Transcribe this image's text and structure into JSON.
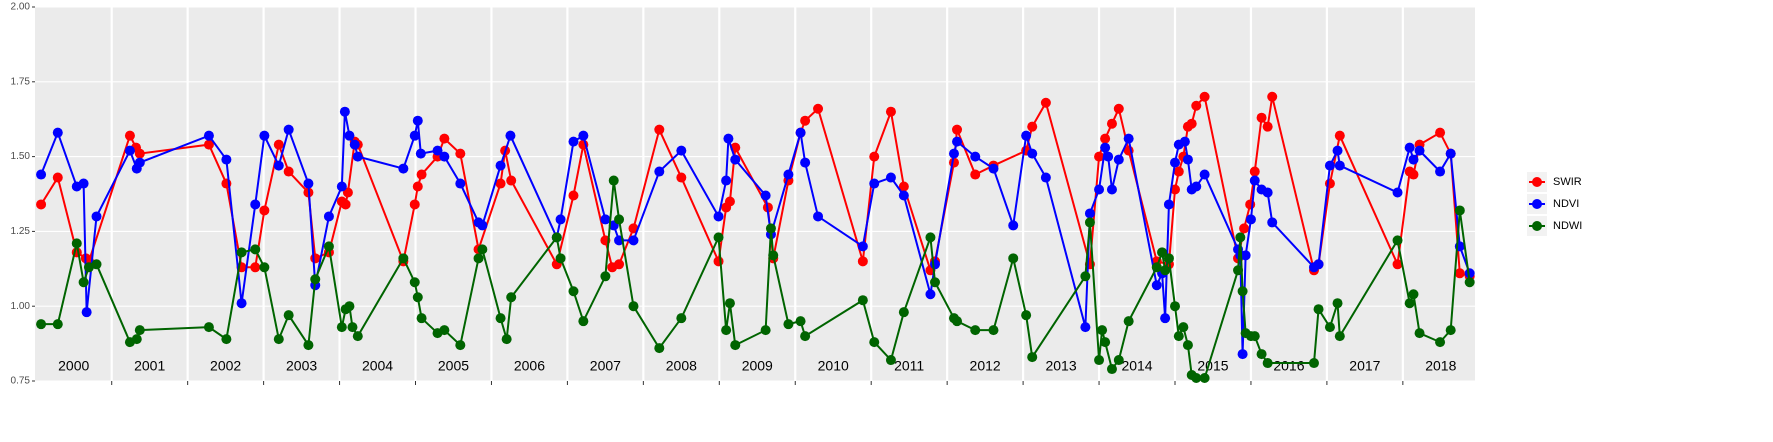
{
  "chart_data": {
    "type": "line",
    "xlim": [
      1999.99,
      2018.95
    ],
    "ylim": [
      0.75,
      2.0
    ],
    "yticks": [
      {
        "value": 0.75,
        "label": "0.75"
      },
      {
        "value": 1.0,
        "label": "1.00"
      },
      {
        "value": 1.25,
        "label": "1.25"
      },
      {
        "value": 1.5,
        "label": "1.50"
      },
      {
        "value": 1.75,
        "label": "1.75"
      },
      {
        "value": 2.0,
        "label": "2.00"
      }
    ],
    "xticks": [
      2001,
      2002,
      2003,
      2004,
      2005,
      2006,
      2007,
      2008,
      2009,
      2010,
      2011,
      2012,
      2013,
      2014,
      2015,
      2016,
      2017,
      2018
    ],
    "year_labels": [
      {
        "value": 2000.5,
        "label": "2000"
      },
      {
        "value": 2001.5,
        "label": "2001"
      },
      {
        "value": 2002.5,
        "label": "2002"
      },
      {
        "value": 2003.5,
        "label": "2003"
      },
      {
        "value": 2004.5,
        "label": "2004"
      },
      {
        "value": 2005.5,
        "label": "2005"
      },
      {
        "value": 2006.5,
        "label": "2006"
      },
      {
        "value": 2007.5,
        "label": "2007"
      },
      {
        "value": 2008.5,
        "label": "2008"
      },
      {
        "value": 2009.5,
        "label": "2009"
      },
      {
        "value": 2010.5,
        "label": "2010"
      },
      {
        "value": 2011.5,
        "label": "2011"
      },
      {
        "value": 2012.5,
        "label": "2012"
      },
      {
        "value": 2013.5,
        "label": "2013"
      },
      {
        "value": 2014.5,
        "label": "2014"
      },
      {
        "value": 2015.5,
        "label": "2015"
      },
      {
        "value": 2016.5,
        "label": "2016"
      },
      {
        "value": 2017.5,
        "label": "2017"
      },
      {
        "value": 2018.5,
        "label": "2018"
      }
    ],
    "grid": true,
    "legend": "right",
    "series": [
      {
        "name": "SWIR",
        "color": "#ff0000",
        "x": [
          2000.07,
          2000.29,
          2000.54,
          2000.66,
          2000.7,
          2001.24,
          2001.32,
          2001.37,
          2002.28,
          2002.51,
          2002.71,
          2002.89,
          2003.01,
          2003.2,
          2003.33,
          2003.59,
          2003.68,
          2003.86,
          2004.03,
          2004.08,
          2004.11,
          2004.2,
          2004.24,
          2004.84,
          2004.99,
          2005.03,
          2005.08,
          2005.29,
          2005.38,
          2005.59,
          2005.83,
          2006.12,
          2006.18,
          2006.26,
          2006.86,
          2007.08,
          2007.21,
          2007.5,
          2007.59,
          2007.68,
          2007.87,
          2008.21,
          2008.5,
          2008.99,
          2009.09,
          2009.14,
          2009.21,
          2009.64,
          2009.71,
          2009.91,
          2010.07,
          2010.13,
          2010.3,
          2010.89,
          2011.04,
          2011.26,
          2011.43,
          2011.78,
          2011.84,
          2012.09,
          2012.13,
          2012.37,
          2012.61,
          2013.04,
          2013.12,
          2013.3,
          2013.88,
          2014.0,
          2014.08,
          2014.17,
          2014.26,
          2014.39,
          2014.76,
          2014.92,
          2015.0,
          2015.05,
          2015.11,
          2015.17,
          2015.22,
          2015.28,
          2015.39,
          2015.83,
          2015.91,
          2015.99,
          2016.05,
          2016.14,
          2016.22,
          2016.28,
          2016.83,
          2016.89,
          2017.04,
          2017.17,
          2017.93,
          2018.09,
          2018.14,
          2018.22,
          2018.49,
          2018.63,
          2018.75,
          2018.88
        ],
        "values": [
          1.34,
          1.43,
          1.18,
          1.16,
          1.15,
          1.57,
          1.53,
          1.51,
          1.54,
          1.41,
          1.13,
          1.13,
          1.32,
          1.54,
          1.45,
          1.38,
          1.16,
          1.18,
          1.35,
          1.34,
          1.38,
          1.55,
          1.54,
          1.15,
          1.34,
          1.4,
          1.44,
          1.5,
          1.56,
          1.51,
          1.19,
          1.41,
          1.52,
          1.42,
          1.14,
          1.37,
          1.54,
          1.22,
          1.13,
          1.14,
          1.26,
          1.59,
          1.43,
          1.15,
          1.33,
          1.35,
          1.53,
          1.33,
          1.16,
          1.42,
          1.58,
          1.62,
          1.66,
          1.15,
          1.5,
          1.65,
          1.4,
          1.12,
          1.15,
          1.48,
          1.59,
          1.44,
          1.47,
          1.52,
          1.6,
          1.68,
          1.14,
          1.5,
          1.56,
          1.61,
          1.66,
          1.52,
          1.15,
          1.14,
          1.39,
          1.45,
          1.5,
          1.6,
          1.61,
          1.67,
          1.7,
          1.16,
          1.26,
          1.34,
          1.45,
          1.63,
          1.6,
          1.7,
          1.12,
          1.14,
          1.41,
          1.57,
          1.14,
          1.45,
          1.44,
          1.54,
          1.58,
          1.51,
          1.11,
          1.1
        ]
      },
      {
        "name": "NDVI",
        "color": "#0000ff",
        "x": [
          2000.07,
          2000.29,
          2000.54,
          2000.63,
          2000.67,
          2000.8,
          2001.24,
          2001.33,
          2001.37,
          2002.28,
          2002.51,
          2002.71,
          2002.89,
          2003.01,
          2003.2,
          2003.33,
          2003.59,
          2003.68,
          2003.86,
          2004.03,
          2004.07,
          2004.13,
          2004.2,
          2004.24,
          2004.84,
          2004.99,
          2005.03,
          2005.07,
          2005.29,
          2005.38,
          2005.59,
          2005.83,
          2005.88,
          2006.12,
          2006.25,
          2006.86,
          2006.91,
          2007.08,
          2007.21,
          2007.5,
          2007.61,
          2007.68,
          2007.87,
          2008.21,
          2008.5,
          2008.99,
          2009.09,
          2009.12,
          2009.21,
          2009.61,
          2009.68,
          2009.91,
          2010.07,
          2010.13,
          2010.3,
          2010.89,
          2011.04,
          2011.26,
          2011.43,
          2011.78,
          2011.84,
          2012.09,
          2012.13,
          2012.37,
          2012.61,
          2012.87,
          2013.04,
          2013.12,
          2013.3,
          2013.82,
          2013.88,
          2014.0,
          2014.08,
          2014.12,
          2014.17,
          2014.26,
          2014.39,
          2014.76,
          2014.83,
          2014.87,
          2014.92,
          2015.0,
          2015.05,
          2015.13,
          2015.17,
          2015.22,
          2015.28,
          2015.39,
          2015.83,
          2015.86,
          2015.89,
          2015.93,
          2016.0,
          2016.05,
          2016.14,
          2016.22,
          2016.28,
          2016.83,
          2016.89,
          2017.04,
          2017.14,
          2017.17,
          2017.93,
          2018.09,
          2018.14,
          2018.22,
          2018.49,
          2018.63,
          2018.75,
          2018.88
        ],
        "values": [
          1.44,
          1.58,
          1.4,
          1.41,
          0.98,
          1.3,
          1.52,
          1.46,
          1.48,
          1.57,
          1.49,
          1.01,
          1.34,
          1.57,
          1.47,
          1.59,
          1.41,
          1.07,
          1.3,
          1.4,
          1.65,
          1.57,
          1.54,
          1.5,
          1.46,
          1.57,
          1.62,
          1.51,
          1.52,
          1.5,
          1.41,
          1.28,
          1.27,
          1.47,
          1.57,
          1.23,
          1.29,
          1.55,
          1.57,
          1.29,
          1.27,
          1.22,
          1.22,
          1.45,
          1.52,
          1.3,
          1.42,
          1.56,
          1.49,
          1.37,
          1.24,
          1.44,
          1.58,
          1.48,
          1.3,
          1.2,
          1.41,
          1.43,
          1.37,
          1.04,
          1.14,
          1.51,
          1.55,
          1.5,
          1.46,
          1.27,
          1.57,
          1.51,
          1.43,
          0.93,
          1.31,
          1.39,
          1.53,
          1.5,
          1.39,
          1.49,
          1.56,
          1.07,
          1.11,
          0.96,
          1.34,
          1.48,
          1.54,
          1.55,
          1.49,
          1.39,
          1.4,
          1.44,
          1.19,
          1.17,
          0.84,
          1.17,
          1.29,
          1.42,
          1.39,
          1.38,
          1.28,
          1.13,
          1.14,
          1.47,
          1.52,
          1.47,
          1.38,
          1.53,
          1.49,
          1.52,
          1.45,
          1.51,
          1.2,
          1.11
        ]
      },
      {
        "name": "NDWI",
        "color": "#006400",
        "x": [
          2000.07,
          2000.29,
          2000.54,
          2000.63,
          2000.7,
          2000.8,
          2001.24,
          2001.33,
          2001.37,
          2002.28,
          2002.51,
          2002.71,
          2002.89,
          2003.01,
          2003.2,
          2003.33,
          2003.59,
          2003.68,
          2003.86,
          2004.03,
          2004.08,
          2004.13,
          2004.17,
          2004.24,
          2004.84,
          2004.99,
          2005.03,
          2005.08,
          2005.29,
          2005.38,
          2005.59,
          2005.83,
          2005.88,
          2006.12,
          2006.2,
          2006.26,
          2006.86,
          2006.91,
          2007.08,
          2007.21,
          2007.5,
          2007.61,
          2007.68,
          2007.87,
          2008.21,
          2008.5,
          2008.99,
          2009.09,
          2009.14,
          2009.21,
          2009.61,
          2009.68,
          2009.71,
          2009.91,
          2010.07,
          2010.13,
          2010.89,
          2011.04,
          2011.26,
          2011.43,
          2011.78,
          2011.84,
          2012.09,
          2012.13,
          2012.37,
          2012.61,
          2012.87,
          2013.04,
          2013.12,
          2013.82,
          2013.88,
          2014.0,
          2014.04,
          2014.08,
          2014.17,
          2014.26,
          2014.39,
          2014.76,
          2014.83,
          2014.87,
          2014.92,
          2015.0,
          2015.05,
          2015.11,
          2015.17,
          2015.22,
          2015.28,
          2015.39,
          2015.83,
          2015.86,
          2015.89,
          2015.93,
          2016.0,
          2016.05,
          2016.14,
          2016.22,
          2016.83,
          2016.89,
          2017.04,
          2017.14,
          2017.17,
          2017.93,
          2018.09,
          2018.14,
          2018.22,
          2018.49,
          2018.63,
          2018.75,
          2018.88
        ],
        "values": [
          0.94,
          0.94,
          1.21,
          1.08,
          1.13,
          1.14,
          0.88,
          0.89,
          0.92,
          0.93,
          0.89,
          1.18,
          1.19,
          1.13,
          0.89,
          0.97,
          0.87,
          1.09,
          1.2,
          0.93,
          0.99,
          1.0,
          0.93,
          0.9,
          1.16,
          1.08,
          1.03,
          0.96,
          0.91,
          0.92,
          0.87,
          1.16,
          1.19,
          0.96,
          0.89,
          1.03,
          1.23,
          1.16,
          1.05,
          0.95,
          1.1,
          1.42,
          1.29,
          1.0,
          0.86,
          0.96,
          1.23,
          0.92,
          1.01,
          0.87,
          0.92,
          1.26,
          1.17,
          0.94,
          0.95,
          0.9,
          1.02,
          0.88,
          0.82,
          0.98,
          1.23,
          1.08,
          0.96,
          0.95,
          0.92,
          0.92,
          1.16,
          0.97,
          0.83,
          1.1,
          1.28,
          0.82,
          0.92,
          0.88,
          0.79,
          0.82,
          0.95,
          1.13,
          1.18,
          1.12,
          1.16,
          1.0,
          0.9,
          0.93,
          0.87,
          0.77,
          0.76,
          0.76,
          1.12,
          1.23,
          1.05,
          0.91,
          0.9,
          0.9,
          0.84,
          0.81,
          0.81,
          0.99,
          0.93,
          1.01,
          0.9,
          1.22,
          1.01,
          1.04,
          0.91,
          0.88,
          0.92,
          1.32,
          1.08
        ]
      }
    ]
  }
}
